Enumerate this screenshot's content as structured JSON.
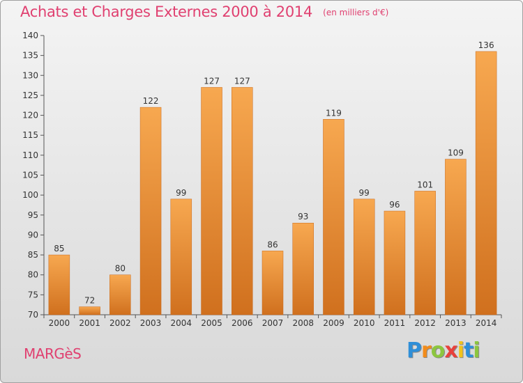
{
  "title": "Achats et Charges Externes 2000 à 2014",
  "subtitle": "(en milliers d'€)",
  "commune": "MARGèS",
  "brand": {
    "letters": [
      "P",
      "r",
      "o",
      "x",
      "i",
      "t",
      "i"
    ],
    "colors": [
      "#2f8fd8",
      "#f28c1b",
      "#8cc63f",
      "#e8413c",
      "#f2c31b",
      "#2f8fd8",
      "#8cc63f"
    ]
  },
  "colors": {
    "accent": "#e04070",
    "bar_top": "#f7a850",
    "bar_bottom": "#d0701e"
  },
  "chart_data": {
    "type": "bar",
    "categories": [
      "2000",
      "2001",
      "2002",
      "2003",
      "2004",
      "2005",
      "2006",
      "2007",
      "2008",
      "2009",
      "2010",
      "2011",
      "2012",
      "2013",
      "2014"
    ],
    "values": [
      85,
      72,
      80,
      122,
      99,
      127,
      127,
      86,
      93,
      119,
      99,
      96,
      101,
      109,
      136
    ],
    "ylim": [
      70,
      140
    ],
    "yticks": [
      70,
      75,
      80,
      85,
      90,
      95,
      100,
      105,
      110,
      115,
      120,
      125,
      130,
      135,
      140
    ],
    "grid": false,
    "data_labels": true
  }
}
